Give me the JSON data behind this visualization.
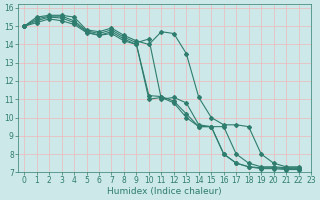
{
  "xlabel": "Humidex (Indice chaleur)",
  "bg_color": "#cce8e8",
  "grid_color": "#f0b8b8",
  "line_color": "#2e7d6e",
  "xlim": [
    -0.5,
    23
  ],
  "ylim": [
    7,
    16.2
  ],
  "yticks": [
    7,
    8,
    9,
    10,
    11,
    12,
    13,
    14,
    15,
    16
  ],
  "xticks": [
    0,
    1,
    2,
    3,
    4,
    5,
    6,
    7,
    8,
    9,
    10,
    11,
    12,
    13,
    14,
    15,
    16,
    17,
    18,
    19,
    20,
    21,
    22,
    23
  ],
  "series": [
    {
      "x": [
        0,
        1,
        2,
        3,
        4,
        5,
        6,
        7,
        8,
        9,
        10,
        11,
        12,
        13,
        14,
        15,
        16,
        17,
        18,
        19,
        20,
        21,
        22
      ],
      "y": [
        15.0,
        15.5,
        15.6,
        15.6,
        15.5,
        14.8,
        14.7,
        14.9,
        14.5,
        14.2,
        14.0,
        14.7,
        14.6,
        13.5,
        11.1,
        10.0,
        9.6,
        9.6,
        9.5,
        8.0,
        7.5,
        7.3,
        7.3
      ]
    },
    {
      "x": [
        0,
        1,
        2,
        3,
        4,
        5,
        6,
        7,
        8,
        9,
        10,
        11,
        12,
        13,
        14,
        15,
        16,
        17,
        18,
        19,
        20,
        21,
        22
      ],
      "y": [
        15.0,
        15.4,
        15.55,
        15.55,
        15.3,
        14.75,
        14.6,
        14.8,
        14.4,
        14.1,
        14.3,
        11.0,
        11.1,
        10.8,
        9.6,
        9.5,
        9.5,
        8.0,
        7.5,
        7.3,
        7.3,
        7.25,
        7.25
      ]
    },
    {
      "x": [
        0,
        1,
        2,
        3,
        4,
        5,
        6,
        7,
        8,
        9,
        10,
        11,
        12,
        13,
        14,
        15,
        16,
        17,
        18,
        19,
        20,
        21,
        22
      ],
      "y": [
        15.0,
        15.3,
        15.5,
        15.45,
        15.2,
        14.7,
        14.5,
        14.7,
        14.3,
        14.0,
        11.2,
        11.15,
        10.9,
        10.2,
        9.5,
        9.5,
        8.0,
        7.5,
        7.3,
        7.25,
        7.25,
        7.2,
        7.2
      ]
    },
    {
      "x": [
        0,
        1,
        2,
        3,
        4,
        5,
        6,
        7,
        8,
        9,
        10,
        11,
        12,
        13,
        14,
        15,
        16,
        17,
        18,
        19,
        20,
        21,
        22
      ],
      "y": [
        15.0,
        15.2,
        15.4,
        15.3,
        15.1,
        14.65,
        14.5,
        14.6,
        14.2,
        14.0,
        11.0,
        11.1,
        10.8,
        10.0,
        9.5,
        9.5,
        8.0,
        7.5,
        7.3,
        7.2,
        7.2,
        7.15,
        7.15
      ]
    }
  ],
  "marker": "D",
  "markersize": 2.0,
  "linewidth": 0.8,
  "tick_fontsize": 5.5,
  "xlabel_fontsize": 6.5
}
